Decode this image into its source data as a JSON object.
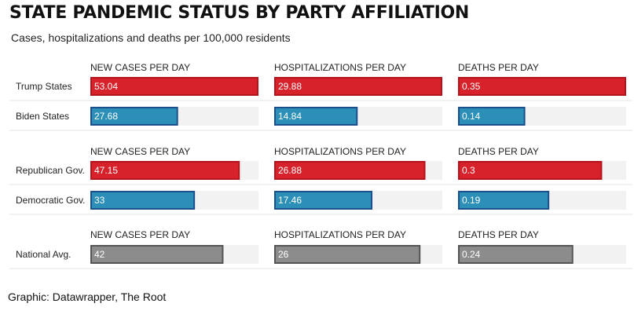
{
  "title": "STATE PANDEMIC STATUS BY PARTY AFFILIATION",
  "subtitle": "Cases, hospitalizations and deaths per 100,000 residents",
  "source": "Graphic: Datawrapper, The Root",
  "colors": {
    "red": "#d7212b",
    "red_border": "#b4141c",
    "blue": "#2c8fb8",
    "blue_border": "#1b4f8c",
    "gray": "#8c8c8c",
    "gray_border": "#555555",
    "track": "#f2f2f2"
  },
  "chart_data": {
    "type": "bar",
    "layout": "small-multiples",
    "metrics": [
      "NEW CASES PER DAY",
      "HOSPITALIZATIONS PER DAY",
      "DEATHS PER DAY"
    ],
    "groups": [
      {
        "rows": [
          {
            "label": "Trump States",
            "color": "red",
            "values": [
              53.04,
              29.88,
              0.35
            ]
          },
          {
            "label": "Biden States",
            "color": "blue",
            "values": [
              27.68,
              14.84,
              0.14
            ]
          }
        ]
      },
      {
        "rows": [
          {
            "label": "Republican Gov.",
            "color": "red",
            "values": [
              47.15,
              26.88,
              0.3
            ]
          },
          {
            "label": "Democratic Gov.",
            "color": "blue",
            "values": [
              33,
              17.46,
              0.19
            ]
          }
        ]
      },
      {
        "rows": [
          {
            "label": "National Avg.",
            "color": "gray",
            "values": [
              42,
              26,
              0.24
            ]
          }
        ]
      }
    ],
    "value_labels": [
      [
        "53.04",
        "29.88",
        "0.35"
      ],
      [
        "27.68",
        "14.84",
        "0.14"
      ],
      [
        "47.15",
        "26.88",
        "0.3"
      ],
      [
        "33",
        "17.46",
        "0.19"
      ],
      [
        "42",
        "26",
        "0.24"
      ]
    ],
    "xlim": [
      [
        0,
        53.04
      ],
      [
        0,
        29.88
      ],
      [
        0,
        0.35
      ]
    ]
  }
}
